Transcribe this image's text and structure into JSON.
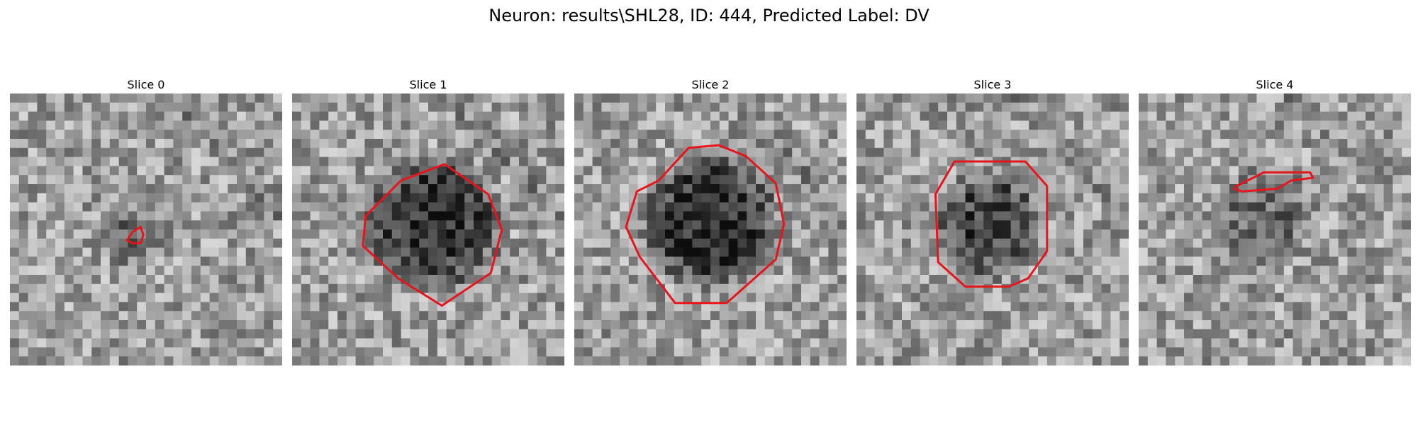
{
  "figure": {
    "title": "Neuron: results\\SHL28, ID: 444, Predicted Label: DV"
  },
  "colors": {
    "contour": "#e8141c",
    "background": "#ffffff"
  },
  "panels": [
    {
      "title": "Slice 0",
      "seed": 11,
      "center": [
        0.46,
        0.52
      ],
      "radius": 0.14,
      "darkness": 0.18,
      "contour": [
        [
          0.43,
          0.54
        ],
        [
          0.45,
          0.51
        ],
        [
          0.48,
          0.49
        ],
        [
          0.49,
          0.52
        ],
        [
          0.48,
          0.55
        ],
        [
          0.45,
          0.55
        ]
      ]
    },
    {
      "title": "Slice 1",
      "seed": 23,
      "center": [
        0.52,
        0.48
      ],
      "radius": 0.27,
      "darkness": 0.45,
      "contour": [
        [
          0.4,
          0.32
        ],
        [
          0.56,
          0.26
        ],
        [
          0.72,
          0.37
        ],
        [
          0.77,
          0.5
        ],
        [
          0.73,
          0.66
        ],
        [
          0.55,
          0.78
        ],
        [
          0.39,
          0.68
        ],
        [
          0.26,
          0.56
        ],
        [
          0.27,
          0.45
        ]
      ]
    },
    {
      "title": "Slice 2",
      "seed": 37,
      "center": [
        0.5,
        0.47
      ],
      "radius": 0.27,
      "darkness": 0.48,
      "contour": [
        [
          0.31,
          0.32
        ],
        [
          0.42,
          0.2
        ],
        [
          0.53,
          0.19
        ],
        [
          0.63,
          0.23
        ],
        [
          0.74,
          0.33
        ],
        [
          0.77,
          0.48
        ],
        [
          0.74,
          0.61
        ],
        [
          0.56,
          0.77
        ],
        [
          0.37,
          0.77
        ],
        [
          0.24,
          0.6
        ],
        [
          0.19,
          0.49
        ],
        [
          0.23,
          0.36
        ]
      ]
    },
    {
      "title": "Slice 3",
      "seed": 49,
      "center": [
        0.49,
        0.48
      ],
      "radius": 0.22,
      "darkness": 0.38,
      "contour": [
        [
          0.36,
          0.25
        ],
        [
          0.62,
          0.25
        ],
        [
          0.7,
          0.34
        ],
        [
          0.7,
          0.58
        ],
        [
          0.63,
          0.68
        ],
        [
          0.56,
          0.71
        ],
        [
          0.4,
          0.71
        ],
        [
          0.3,
          0.62
        ],
        [
          0.29,
          0.37
        ]
      ]
    },
    {
      "title": "Slice 4",
      "seed": 61,
      "center": [
        0.46,
        0.45
      ],
      "radius": 0.2,
      "darkness": 0.2,
      "contour": [
        [
          0.36,
          0.34
        ],
        [
          0.46,
          0.29
        ],
        [
          0.63,
          0.29
        ],
        [
          0.64,
          0.31
        ],
        [
          0.56,
          0.32
        ],
        [
          0.51,
          0.35
        ],
        [
          0.38,
          0.36
        ],
        [
          0.35,
          0.35
        ]
      ]
    }
  ]
}
